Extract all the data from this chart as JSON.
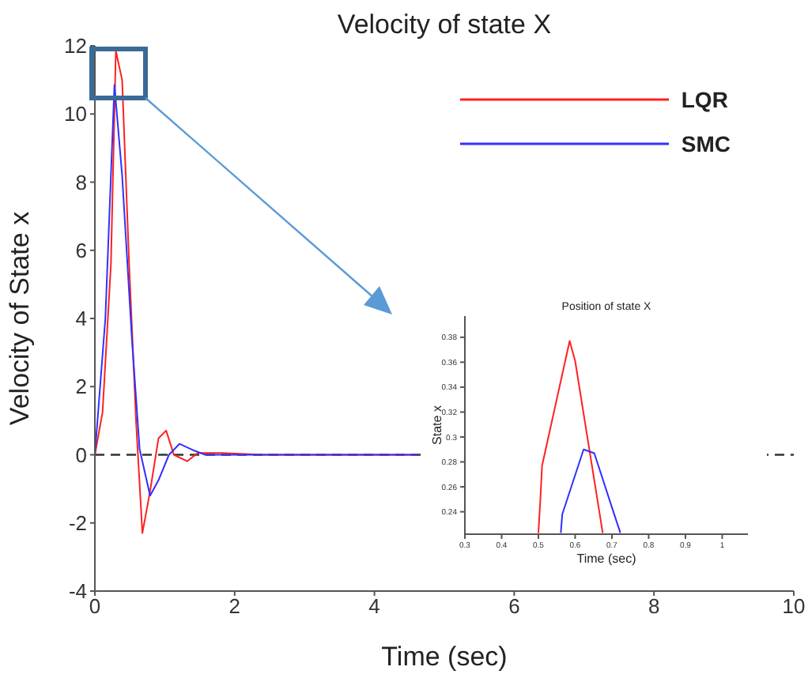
{
  "chart_data": [
    {
      "type": "line",
      "title": "Velocity of state X",
      "xlabel": "Time (sec)",
      "ylabel": "Velocity of State x",
      "xlim": [
        0,
        10
      ],
      "xticks": [
        0,
        2,
        4,
        6,
        8,
        10
      ],
      "ylim": [
        -4,
        12
      ],
      "yticks": [
        -4,
        -2,
        0,
        2,
        4,
        6,
        8,
        10,
        12
      ],
      "legend": "top right",
      "series": [
        {
          "name": "LQR",
          "color": "#ff2020",
          "x": [
            0,
            0.11,
            0.23,
            0.3,
            0.39,
            0.49,
            0.59,
            0.68,
            0.79,
            0.91,
            1.02,
            1.13,
            1.32,
            1.47,
            1.81,
            2.4,
            4.64
          ],
          "values": [
            0,
            1.25,
            5.6,
            11.85,
            11,
            5.6,
            0.95,
            -2.3,
            -1.07,
            0.48,
            0.71,
            0,
            -0.19,
            0.05,
            0.05,
            0,
            0
          ]
        },
        {
          "name": "SMC",
          "color": "#3030ff",
          "x": [
            0,
            0.15,
            0.28,
            0.39,
            0.53,
            0.64,
            0.79,
            0.91,
            1.06,
            1.21,
            1.4,
            1.58,
            2.4,
            4.64
          ],
          "values": [
            0,
            4,
            10.85,
            8.2,
            3.4,
            0.17,
            -1.2,
            -0.75,
            0,
            0.32,
            0.14,
            0,
            0,
            0
          ]
        }
      ],
      "ref_lines": [
        {
          "axis": "y",
          "value": 0,
          "color": "#333333",
          "line_style": "dashed"
        }
      ]
    },
    {
      "type": "line",
      "title": "Position of state X",
      "xlabel": "Time (sec)",
      "ylabel": "State x",
      "xlim": [
        0.3,
        1.07
      ],
      "xticks": [
        0.3,
        0.4,
        0.5,
        0.6,
        0.7,
        0.8,
        0.9,
        1
      ],
      "ylim": [
        0.222,
        0.397
      ],
      "yticks": [
        0.24,
        0.26,
        0.28,
        0.3,
        0.32,
        0.34,
        0.36,
        0.38
      ],
      "series": [
        {
          "color": "#ff2020",
          "x": [
            0.5,
            0.505,
            0.51,
            0.585,
            0.6,
            0.675
          ],
          "values": [
            0.223,
            0.248,
            0.277,
            0.377,
            0.361,
            0.223
          ]
        },
        {
          "color": "#3030ff",
          "x": [
            0.561,
            0.565,
            0.623,
            0.652,
            0.704,
            0.723
          ],
          "values": [
            0.223,
            0.238,
            0.29,
            0.287,
            0.24,
            0.223
          ]
        }
      ]
    }
  ]
}
